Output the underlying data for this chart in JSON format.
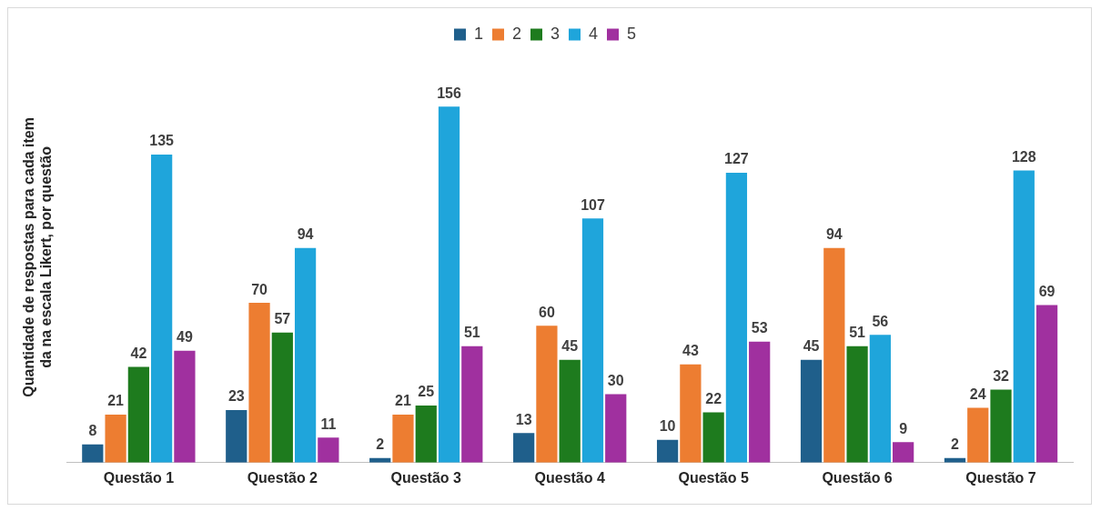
{
  "chart_data": {
    "type": "bar",
    "ylabel": "Quantidade de respostas para cada item\nda na escala Likert, por questão",
    "categories": [
      "Questão 1",
      "Questão 2",
      "Questão 3",
      "Questão 4",
      "Questão 5",
      "Questão 6",
      "Questão 7"
    ],
    "series": [
      {
        "name": "1",
        "color": "#1f5f8b",
        "values": [
          8,
          23,
          2,
          13,
          10,
          45,
          2
        ]
      },
      {
        "name": "2",
        "color": "#ed7d31",
        "values": [
          21,
          70,
          21,
          60,
          43,
          94,
          24
        ]
      },
      {
        "name": "3",
        "color": "#1e7b1e",
        "values": [
          42,
          57,
          25,
          45,
          22,
          51,
          32
        ]
      },
      {
        "name": "4",
        "color": "#1fa5db",
        "values": [
          135,
          94,
          156,
          107,
          127,
          56,
          128
        ]
      },
      {
        "name": "5",
        "color": "#a0309f",
        "values": [
          49,
          11,
          51,
          30,
          53,
          9,
          69
        ]
      }
    ],
    "data_labels": true,
    "legend": "top",
    "grid": false
  }
}
